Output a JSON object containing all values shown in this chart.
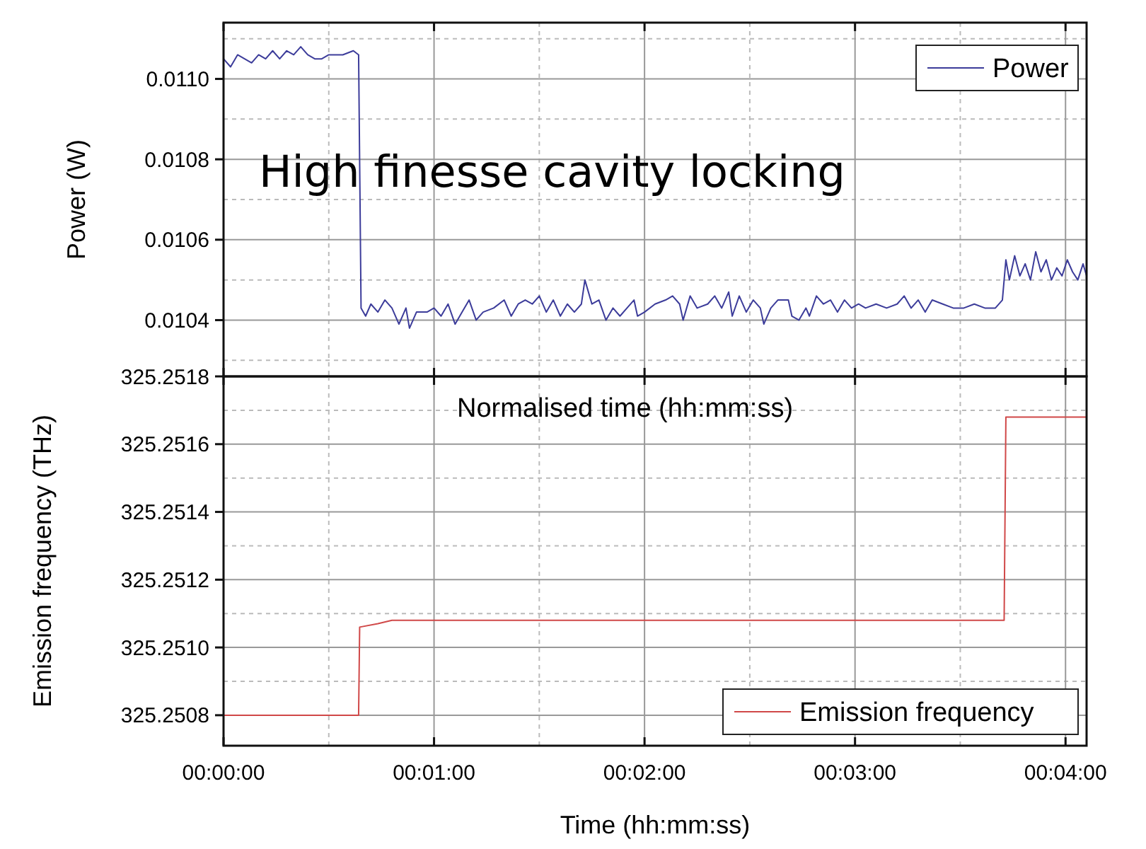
{
  "chart_data": [
    {
      "type": "line",
      "ylabel": "Power (W)",
      "annotations": [
        "High finesse cavity locking"
      ],
      "legend": "top right",
      "grid": true,
      "tick_labels": "y",
      "xlim": [
        0,
        246
      ],
      "xticks": [
        {
          "value": 0,
          "label": null
        },
        {
          "value": 60,
          "label": null
        },
        {
          "value": 120,
          "label": null
        },
        {
          "value": 180,
          "label": null
        },
        {
          "value": 240,
          "label": null
        }
      ],
      "ylim": [
        0.01026,
        0.01114
      ],
      "yticks": [
        {
          "value": 0.0104,
          "label": "0.0104"
        },
        {
          "value": 0.0106,
          "label": "0.0106"
        },
        {
          "value": 0.0108,
          "label": "0.0108"
        },
        {
          "value": 0.011,
          "label": "0.0110"
        }
      ],
      "series": [
        {
          "name": "Power",
          "color": "#3c3c9a",
          "x": [
            0,
            2,
            4,
            6,
            8,
            10,
            12,
            14,
            16,
            18,
            20,
            22,
            24,
            26,
            28,
            30,
            34,
            37,
            38.5,
            39.2,
            40.5,
            42,
            44,
            46,
            48,
            50,
            52,
            53,
            55,
            58,
            60,
            62,
            64,
            66,
            68,
            70,
            72,
            74,
            77,
            80,
            82,
            84,
            86,
            88,
            90,
            92,
            94,
            96,
            98,
            100,
            102,
            103,
            105,
            107,
            109,
            111,
            113,
            115,
            117,
            118,
            120,
            123,
            126,
            128,
            130,
            131,
            133,
            135,
            138,
            140,
            142,
            144,
            145,
            147,
            149,
            151,
            153,
            154,
            156,
            158,
            161,
            162,
            164,
            166,
            167,
            169,
            171,
            173,
            175,
            177,
            179,
            181,
            183,
            186,
            189,
            192,
            194,
            196,
            198,
            200,
            202,
            205,
            208,
            211,
            214,
            217,
            220,
            222,
            223,
            224,
            225.5,
            227,
            228.5,
            230,
            231.5,
            233,
            234.5,
            236,
            237.5,
            239,
            240.5,
            242,
            243.5,
            245,
            246
          ],
          "values": [
            0.01105,
            0.01103,
            0.01106,
            0.01105,
            0.01104,
            0.01106,
            0.01105,
            0.01107,
            0.01105,
            0.01107,
            0.01106,
            0.01108,
            0.01106,
            0.01105,
            0.01105,
            0.01106,
            0.01106,
            0.01107,
            0.01106,
            0.01043,
            0.01041,
            0.01044,
            0.01042,
            0.01045,
            0.01043,
            0.01039,
            0.01043,
            0.01038,
            0.01042,
            0.01042,
            0.01043,
            0.01041,
            0.01044,
            0.01039,
            0.01042,
            0.01045,
            0.0104,
            0.01042,
            0.01043,
            0.01045,
            0.01041,
            0.01044,
            0.01045,
            0.01044,
            0.01046,
            0.01042,
            0.01045,
            0.01041,
            0.01044,
            0.01042,
            0.01044,
            0.0105,
            0.01044,
            0.01045,
            0.0104,
            0.01043,
            0.01041,
            0.01043,
            0.01045,
            0.01041,
            0.01042,
            0.01044,
            0.01045,
            0.01046,
            0.01044,
            0.0104,
            0.01046,
            0.01043,
            0.01044,
            0.01046,
            0.01043,
            0.01047,
            0.01041,
            0.01046,
            0.01042,
            0.01045,
            0.01043,
            0.01039,
            0.01043,
            0.01045,
            0.01045,
            0.01041,
            0.0104,
            0.01043,
            0.01041,
            0.01046,
            0.01044,
            0.01045,
            0.01042,
            0.01045,
            0.01043,
            0.01044,
            0.01043,
            0.01044,
            0.01043,
            0.01044,
            0.01046,
            0.01043,
            0.01045,
            0.01042,
            0.01045,
            0.01044,
            0.01043,
            0.01043,
            0.01044,
            0.01043,
            0.01043,
            0.01045,
            0.01055,
            0.0105,
            0.01056,
            0.01051,
            0.01054,
            0.0105,
            0.01057,
            0.01052,
            0.01055,
            0.0105,
            0.01053,
            0.01051,
            0.01055,
            0.01052,
            0.0105,
            0.01054,
            0.01051
          ]
        }
      ]
    },
    {
      "type": "line",
      "xlabel": "Time (hh:mm:ss)",
      "ylabel": "Emission frequency (THz)",
      "annotations": [
        "Normalised time (hh:mm:ss)"
      ],
      "legend": "bottom right",
      "grid": true,
      "xlim": [
        0,
        246
      ],
      "xticks": [
        {
          "value": 0,
          "label": "00:00:00"
        },
        {
          "value": 60,
          "label": "00:01:00"
        },
        {
          "value": 120,
          "label": "00:02:00"
        },
        {
          "value": 180,
          "label": "00:03:00"
        },
        {
          "value": 240,
          "label": "00:04:00"
        }
      ],
      "ylim": [
        325.25071,
        325.2518
      ],
      "yticks": [
        {
          "value": 325.2508,
          "label": "325.2508"
        },
        {
          "value": 325.251,
          "label": "325.2510"
        },
        {
          "value": 325.2512,
          "label": "325.2512"
        },
        {
          "value": 325.2514,
          "label": "325.2514"
        },
        {
          "value": 325.2516,
          "label": "325.2516"
        },
        {
          "value": 325.2518,
          "label": "325.2518"
        }
      ],
      "series": [
        {
          "name": "Emission frequency",
          "color": "#d04848",
          "x": [
            0,
            38.5,
            38.8,
            44,
            48,
            222.5,
            223,
            246
          ],
          "values": [
            325.2508,
            325.2508,
            325.25106,
            325.25107,
            325.25108,
            325.25108,
            325.25168,
            325.25168
          ]
        }
      ]
    }
  ]
}
